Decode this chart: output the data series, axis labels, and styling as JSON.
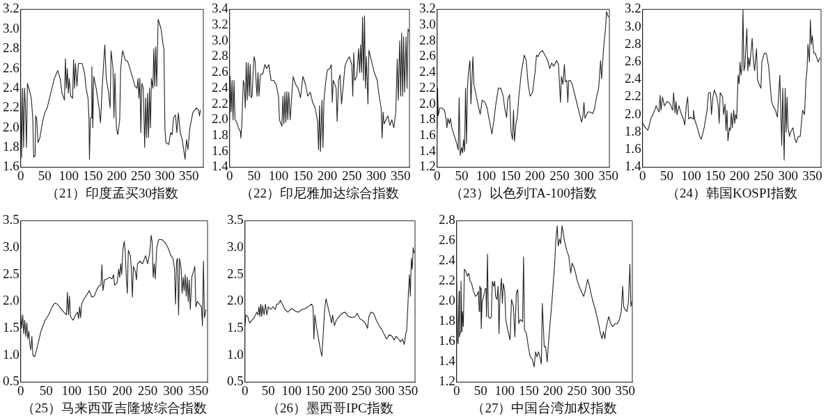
{
  "chart_data": [
    {
      "type": "line",
      "xlabel": "（21）印度孟买30指数",
      "marker": "none",
      "xlim": [
        0,
        380
      ],
      "xticks": [
        0,
        50,
        100,
        150,
        200,
        250,
        300,
        350
      ],
      "ylim": [
        1.6,
        3.2
      ],
      "yticks": [
        1.6,
        1.8,
        {
          "value": 2,
          "label": "2.0"
        },
        2.2,
        2.4,
        2.6,
        2.8,
        {
          "value": 3,
          "label": "3.0"
        },
        3.2
      ],
      "series": [
        {
          "color": "#222222",
          "x": [
            0,
            2,
            4,
            6,
            8,
            10,
            12,
            14,
            18,
            22,
            25,
            27,
            30,
            31,
            33,
            36,
            40,
            45,
            50,
            55,
            60,
            65,
            70,
            77,
            82,
            86,
            91,
            93,
            95,
            97,
            99,
            101,
            104,
            108,
            110,
            112,
            114,
            117,
            120,
            128,
            133,
            136,
            140,
            142,
            143,
            145,
            147,
            148,
            150,
            152,
            157,
            163,
            166,
            170,
            175,
            178,
            183,
            186,
            188,
            192,
            194,
            196,
            199,
            202,
            206,
            208,
            212,
            218,
            222,
            226,
            232,
            238,
            242,
            244,
            246,
            248,
            250,
            252,
            255,
            258,
            260,
            262,
            264,
            266,
            268,
            270,
            272,
            275,
            277,
            279,
            281,
            283,
            286,
            292,
            296,
            298,
            300,
            302,
            308,
            312,
            315,
            318,
            322,
            325,
            328,
            332,
            336,
            340,
            342,
            345,
            348,
            352,
            358,
            365,
            370,
            372,
            374
          ],
          "values": [
            2.4,
            1.7,
            2.4,
            1.8,
            2.4,
            2.2,
            1.8,
            2.45,
            2.38,
            2.3,
            2.1,
            1.7,
            1.72,
            2.12,
            2.1,
            1.85,
            1.9,
            2.05,
            2.15,
            2.2,
            2.3,
            2.4,
            2.5,
            2.58,
            2.5,
            2.35,
            2.28,
            2.7,
            2.4,
            2.6,
            2.35,
            2.5,
            2.32,
            2.3,
            2.69,
            2.4,
            2.65,
            2.42,
            2.65,
            2.65,
            2.55,
            2.4,
            2.3,
            2.1,
            1.68,
            2.1,
            2.1,
            2.62,
            2.0,
            2.52,
            2.4,
            2.2,
            2.05,
            2.45,
            2.84,
            2.5,
            2.35,
            2.2,
            2.78,
            2.6,
            2.1,
            2.55,
            2.0,
            1.93,
            2.08,
            2.6,
            2.78,
            2.68,
            2.68,
            2.62,
            2.52,
            2.42,
            2.4,
            2.5,
            2.3,
            2.5,
            1.95,
            2.45,
            2.4,
            1.8,
            2.3,
            1.9,
            2.35,
            1.9,
            2.4,
            2.0,
            2.5,
            2.4,
            2.8,
            2.42,
            2.82,
            2.42,
            3.1,
            3.0,
            2.85,
            2.8,
            2.0,
            1.85,
            1.83,
            1.95,
            1.93,
            2.1,
            2.13,
            1.95,
            2.15,
            1.95,
            1.88,
            1.75,
            1.68,
            1.88,
            1.78,
            2.0,
            2.15,
            2.2,
            2.18,
            2.12,
            2.18
          ]
        }
      ]
    },
    {
      "type": "line",
      "xlabel": "（22）印尼雅加达综合指数",
      "marker": "none",
      "xlim": [
        0,
        368
      ],
      "xticks": [
        0,
        50,
        100,
        150,
        200,
        250,
        300,
        350
      ],
      "ylim": [
        1.4,
        3.4
      ],
      "yticks": [
        1.4,
        1.6,
        1.8,
        {
          "value": 2,
          "label": "2.0"
        },
        2.2,
        2.4,
        2.6,
        2.8,
        {
          "value": 3,
          "label": "3.0"
        },
        3.2,
        3.4
      ],
      "series": [
        {
          "color": "#222222",
          "x": [
            0,
            1,
            3,
            5,
            7,
            9,
            11,
            14,
            18,
            22,
            23,
            25,
            28,
            30,
            32,
            34,
            36,
            38,
            40,
            42,
            44,
            46,
            48,
            50,
            52,
            54,
            56,
            58,
            60,
            63,
            68,
            72,
            76,
            80,
            85,
            90,
            95,
            100,
            102,
            105,
            107,
            109,
            111,
            113,
            115,
            117,
            119,
            121,
            124,
            127,
            130,
            135,
            140,
            145,
            150,
            155,
            160,
            165,
            170,
            175,
            180,
            182,
            184,
            186,
            189,
            191,
            193,
            197,
            200,
            205,
            208,
            210,
            212,
            218,
            220,
            223,
            226,
            229,
            232,
            236,
            240,
            245,
            250,
            252,
            254,
            256,
            260,
            264,
            266,
            268,
            270,
            272,
            274,
            276,
            278,
            280,
            283,
            285,
            290,
            296,
            302,
            306,
            310,
            312,
            314,
            316,
            320,
            324,
            328,
            332,
            336,
            340,
            343,
            345,
            348,
            350,
            352,
            354,
            356,
            358,
            361,
            363,
            365,
            367
          ],
          "values": [
            2.0,
            2.55,
            2.1,
            2.5,
            2.0,
            2.5,
            2.0,
            1.98,
            1.9,
            1.85,
            1.77,
            1.95,
            2.5,
            2.45,
            2.15,
            2.73,
            2.25,
            2.72,
            2.3,
            2.7,
            2.28,
            2.3,
            2.6,
            2.8,
            2.75,
            2.5,
            2.3,
            2.6,
            2.3,
            2.58,
            2.58,
            2.7,
            2.65,
            2.7,
            2.5,
            2.5,
            2.45,
            2.3,
            2.0,
            1.95,
            1.92,
            2.3,
            1.95,
            2.35,
            1.97,
            2.36,
            2.0,
            2.35,
            2.0,
            2.3,
            2.55,
            2.45,
            2.4,
            2.28,
            2.55,
            2.45,
            2.3,
            2.35,
            2.22,
            2.15,
            1.98,
            1.62,
            2.18,
            1.6,
            2.25,
            1.65,
            2.25,
            2.5,
            2.63,
            2.65,
            2.7,
            2.22,
            2.5,
            2.4,
            1.98,
            2.5,
            2.57,
            2.2,
            2.4,
            2.68,
            2.75,
            2.8,
            2.7,
            2.3,
            2.85,
            2.5,
            2.55,
            2.9,
            2.6,
            2.95,
            2.6,
            3.3,
            2.5,
            3.32,
            2.4,
            2.8,
            2.2,
            2.88,
            2.75,
            2.6,
            2.5,
            2.3,
            2.15,
            1.77,
            2.1,
            1.95,
            2.0,
            2.05,
            1.93,
            2.0,
            1.9,
            2.1,
            2.77,
            2.25,
            3.0,
            2.3,
            3.1,
            2.3,
            3.05,
            2.35,
            3.05,
            2.4,
            3.15,
            3.12
          ]
        }
      ]
    },
    {
      "type": "line",
      "xlabel": "（23）以色列TA-100指数",
      "marker": "none",
      "xlim": [
        0,
        352
      ],
      "xticks": [
        0,
        50,
        100,
        150,
        200,
        250,
        300,
        350
      ],
      "ylim": [
        1.2,
        3.2
      ],
      "yticks": [
        1.2,
        1.4,
        1.6,
        1.8,
        {
          "value": 2,
          "label": "2.0"
        },
        2.2,
        2.4,
        2.6,
        2.8,
        {
          "value": 3,
          "label": "3.0"
        },
        3.2
      ],
      "series": [
        {
          "color": "#222222",
          "x": [
            0,
            1,
            2,
            5,
            10,
            15,
            18,
            20,
            22,
            25,
            27,
            30,
            35,
            40,
            43,
            45,
            47,
            50,
            52,
            54,
            56,
            58,
            60,
            62,
            64,
            67,
            69,
            71,
            73,
            75,
            80,
            85,
            88,
            92,
            98,
            102,
            108,
            112,
            116,
            120,
            125,
            130,
            135,
            138,
            142,
            144,
            148,
            151,
            154,
            156,
            158,
            161,
            164,
            167,
            172,
            178,
            182,
            186,
            190,
            195,
            200,
            203,
            206,
            210,
            215,
            222,
            226,
            230,
            234,
            238,
            244,
            248,
            250,
            252,
            254,
            257,
            260,
            262,
            265,
            267,
            269,
            272,
            276,
            282,
            288,
            292,
            295,
            298,
            300,
            302,
            308,
            312,
            318,
            322,
            326,
            330,
            334,
            336,
            340,
            344,
            346,
            350
          ],
          "values": [
            1.7,
            2.2,
            1.85,
            1.95,
            1.95,
            1.92,
            1.82,
            1.7,
            1.82,
            1.75,
            1.82,
            1.7,
            1.6,
            1.5,
            1.42,
            2.08,
            1.35,
            1.45,
            1.38,
            1.55,
            1.4,
            2.2,
            1.5,
            2.22,
            2.4,
            2.55,
            2.0,
            2.3,
            2.6,
            2.25,
            2.1,
            1.95,
            1.87,
            2.05,
            2.02,
            1.95,
            1.75,
            1.62,
            1.8,
            2.0,
            2.2,
            2.2,
            2.1,
            1.95,
            1.83,
            2.05,
            2.12,
            1.65,
            1.55,
            1.92,
            1.53,
            1.75,
            1.85,
            2.1,
            2.4,
            2.62,
            2.55,
            2.25,
            2.1,
            2.15,
            2.4,
            2.62,
            2.6,
            2.65,
            2.68,
            2.6,
            2.55,
            2.45,
            2.52,
            2.48,
            2.55,
            2.5,
            2.25,
            2.02,
            2.35,
            2.25,
            2.5,
            2.28,
            2.3,
            2.02,
            2.3,
            2.3,
            2.25,
            2.1,
            1.95,
            1.85,
            1.77,
            1.85,
            2.02,
            1.82,
            1.9,
            1.9,
            1.88,
            1.95,
            2.1,
            2.2,
            2.55,
            2.32,
            2.7,
            2.95,
            3.17,
            3.1
          ]
        }
      ]
    },
    {
      "type": "line",
      "xlabel": "（24）韩国KOSPI指数",
      "marker": "none",
      "xlim": [
        0,
        368
      ],
      "xticks": [
        0,
        50,
        100,
        150,
        200,
        250,
        300,
        350
      ],
      "ylim": [
        1.4,
        3.2
      ],
      "yticks": [
        1.4,
        1.6,
        1.8,
        {
          "value": 2,
          "label": "2.0"
        },
        2.2,
        2.4,
        2.6,
        2.8,
        {
          "value": 3,
          "label": "3.0"
        },
        3.2
      ],
      "series": [
        {
          "color": "#222222",
          "x": [
            0,
            6,
            11,
            17,
            25,
            28,
            32,
            34,
            36,
            38,
            41,
            45,
            51,
            57,
            62,
            64,
            67,
            69,
            71,
            75,
            79,
            84,
            87,
            90,
            93,
            95,
            99,
            104,
            105,
            107,
            113,
            118,
            121,
            127,
            133,
            136,
            140,
            142,
            145,
            148,
            153,
            156,
            158,
            160,
            165,
            167,
            170,
            172,
            174,
            176,
            179,
            181,
            183,
            185,
            188,
            190,
            192,
            194,
            197,
            199,
            201,
            203,
            205,
            207,
            209,
            211,
            215,
            217,
            219,
            221,
            226,
            228,
            231,
            235,
            237,
            240,
            244,
            246,
            251,
            255,
            260,
            266,
            269,
            274,
            278,
            283,
            287,
            289,
            292,
            294,
            296,
            298,
            300,
            303,
            305,
            310,
            314,
            317,
            321,
            325,
            330,
            334,
            337,
            339,
            341,
            344,
            346,
            348,
            350,
            353,
            356,
            362,
            366
          ],
          "values": [
            1.9,
            1.85,
            1.82,
            1.95,
            2.05,
            2.1,
            2.05,
            2.03,
            2.22,
            2.05,
            2.2,
            2.1,
            2.15,
            2.12,
            2.05,
            2.25,
            2.02,
            2.15,
            2.0,
            2.1,
            2.02,
            1.95,
            1.88,
            2.1,
            2.2,
            1.95,
            1.97,
            1.95,
            2.05,
            1.95,
            1.85,
            1.75,
            1.72,
            1.85,
            2.05,
            2.25,
            2.25,
            2.0,
            2.2,
            2.28,
            2.2,
            2.1,
            1.9,
            2.25,
            2.2,
            2.0,
            2.12,
            1.82,
            2.05,
            1.7,
            1.85,
            1.82,
            2.02,
            1.85,
            2.05,
            1.9,
            2.0,
            1.95,
            2.45,
            2.35,
            2.6,
            2.45,
            2.55,
            3.2,
            2.5,
            2.55,
            2.98,
            2.5,
            2.65,
            2.55,
            2.87,
            2.65,
            2.5,
            2.75,
            2.4,
            2.35,
            2.3,
            2.6,
            2.7,
            2.7,
            2.55,
            2.15,
            2.1,
            2.05,
            1.97,
            2.45,
            1.65,
            2.3,
            1.48,
            2.3,
            1.8,
            2.2,
            1.85,
            1.75,
            1.8,
            1.85,
            1.72,
            1.68,
            1.75,
            1.75,
            2.05,
            2.0,
            2.4,
            2.5,
            2.8,
            2.6,
            3.08,
            2.8,
            2.9,
            2.7,
            2.7,
            2.6,
            2.65
          ]
        }
      ]
    },
    {
      "type": "line",
      "xlabel": "（25）马来西亚吉隆坡综合指数",
      "marker": "none",
      "xlim": [
        0,
        368
      ],
      "xticks": [
        0,
        50,
        100,
        150,
        200,
        250,
        300,
        350
      ],
      "ylim": [
        0.5,
        3.5
      ],
      "yticks": [
        0.5,
        {
          "value": 1,
          "label": "1.0"
        },
        1.5,
        {
          "value": 2,
          "label": "2.0"
        },
        2.5,
        {
          "value": 3,
          "label": "3.0"
        },
        3.5
      ],
      "series": [
        {
          "color": "#222222",
          "x": [
            0,
            2,
            4,
            6,
            8,
            10,
            12,
            14,
            16,
            18,
            20,
            22,
            24,
            27,
            30,
            35,
            40,
            48,
            55,
            62,
            67,
            72,
            78,
            85,
            90,
            92,
            94,
            96,
            98,
            103,
            108,
            112,
            114,
            116,
            118,
            120,
            125,
            130,
            135,
            140,
            145,
            150,
            155,
            158,
            160,
            162,
            165,
            170,
            175,
            180,
            183,
            185,
            190,
            193,
            195,
            197,
            199,
            201,
            204,
            206,
            208,
            210,
            212,
            216,
            218,
            220,
            222,
            226,
            228,
            230,
            235,
            240,
            246,
            250,
            254,
            257,
            259,
            261,
            263,
            265,
            268,
            272,
            278,
            284,
            290,
            296,
            300,
            303,
            305,
            307,
            309,
            311,
            313,
            316,
            318,
            320,
            322,
            324,
            326,
            328,
            330,
            332,
            334,
            337,
            340,
            343,
            345,
            348,
            352,
            356,
            358,
            360,
            362,
            365
          ],
          "values": [
            1.75,
            1.5,
            1.75,
            1.4,
            1.65,
            1.35,
            1.6,
            1.3,
            1.45,
            1.2,
            1.1,
            1.35,
            1.0,
            0.97,
            1.05,
            1.25,
            1.45,
            1.65,
            1.75,
            1.9,
            1.97,
            1.95,
            1.88,
            1.8,
            1.75,
            2.17,
            1.75,
            2.1,
            1.72,
            1.65,
            1.75,
            1.8,
            1.68,
            1.9,
            1.7,
            1.95,
            2.05,
            2.12,
            2.2,
            2.08,
            2.1,
            2.22,
            2.3,
            2.3,
            2.68,
            2.2,
            2.4,
            2.42,
            2.45,
            2.42,
            2.5,
            2.3,
            2.35,
            2.6,
            2.45,
            2.7,
            2.5,
            2.95,
            3.12,
            2.9,
            2.45,
            2.15,
            2.95,
            2.85,
            2.6,
            2.08,
            2.65,
            2.55,
            2.4,
            2.7,
            2.75,
            2.7,
            2.85,
            2.7,
            2.9,
            3.23,
            3.1,
            2.45,
            2.7,
            2.42,
            3.0,
            3.15,
            3.15,
            3.1,
            3.0,
            2.85,
            2.8,
            2.6,
            1.95,
            2.75,
            2.8,
            1.75,
            2.8,
            2.6,
            2.15,
            2.45,
            2.2,
            2.5,
            2.1,
            2.45,
            2.0,
            2.4,
            1.85,
            2.45,
            2.55,
            2.65,
            1.9,
            2.0,
            1.95,
            1.9,
            1.55,
            2.75,
            1.7,
            1.85
          ]
        }
      ]
    },
    {
      "type": "line",
      "xlabel": "（26）墨西哥IPC指数",
      "marker": "none",
      "xlim": [
        0,
        365
      ],
      "xticks": [
        0,
        50,
        100,
        150,
        200,
        250,
        300,
        350
      ],
      "ylim": [
        0.5,
        3.5
      ],
      "yticks": [
        0.5,
        {
          "value": 1,
          "label": "1.0"
        },
        1.5,
        {
          "value": 2,
          "label": "2.0"
        },
        2.5,
        {
          "value": 3,
          "label": "3.0"
        },
        3.5
      ],
      "series": [
        {
          "color": "#222222",
          "x": [
            0,
            2,
            6,
            10,
            15,
            20,
            25,
            28,
            30,
            32,
            34,
            36,
            38,
            41,
            44,
            47,
            50,
            55,
            60,
            65,
            68,
            72,
            76,
            80,
            86,
            92,
            100,
            108,
            115,
            122,
            130,
            138,
            143,
            146,
            148,
            150,
            154,
            158,
            162,
            165,
            168,
            171,
            174,
            178,
            182,
            186,
            188,
            192,
            196,
            202,
            208,
            215,
            222,
            230,
            237,
            241,
            246,
            252,
            258,
            263,
            266,
            270,
            276,
            282,
            288,
            292,
            298,
            304,
            310,
            316,
            320,
            324,
            328,
            334,
            338,
            342,
            345,
            347,
            349,
            351,
            353,
            355,
            357,
            359,
            361,
            363
          ],
          "values": [
            1.55,
            1.75,
            1.72,
            1.6,
            1.65,
            1.7,
            1.8,
            1.75,
            1.9,
            1.72,
            1.95,
            1.72,
            1.92,
            1.75,
            1.95,
            1.75,
            1.9,
            1.85,
            1.9,
            1.85,
            1.95,
            1.95,
            2.02,
            1.95,
            1.85,
            1.8,
            1.87,
            1.82,
            1.8,
            1.85,
            1.87,
            1.92,
            1.95,
            1.9,
            1.3,
            1.75,
            1.5,
            1.3,
            1.1,
            0.98,
            1.4,
            1.85,
            2.05,
            1.9,
            1.75,
            1.6,
            1.75,
            1.55,
            1.65,
            1.72,
            1.78,
            1.8,
            1.72,
            1.7,
            1.72,
            1.78,
            1.68,
            1.65,
            1.6,
            1.5,
            1.72,
            1.8,
            1.78,
            1.65,
            1.55,
            1.5,
            1.4,
            1.3,
            1.38,
            1.35,
            1.28,
            1.35,
            1.32,
            1.25,
            1.3,
            1.2,
            1.4,
            1.45,
            1.8,
            2.2,
            2.5,
            2.1,
            2.8,
            2.6,
            3.0,
            2.9
          ]
        }
      ]
    },
    {
      "type": "line",
      "xlabel": "（27）中国台湾加权指数",
      "marker": "none",
      "xlim": [
        0,
        365
      ],
      "xticks": [
        0,
        50,
        100,
        150,
        200,
        250,
        300,
        350
      ],
      "ylim": [
        1.2,
        2.8
      ],
      "yticks": [
        1.2,
        1.4,
        1.6,
        1.8,
        {
          "value": 2,
          "label": "2.0"
        },
        2.2,
        2.4,
        2.6,
        2.8
      ],
      "series": [
        {
          "color": "#222222",
          "x": [
            0,
            2,
            3,
            5,
            6,
            8,
            9,
            11,
            12,
            14,
            16,
            19,
            22,
            25,
            28,
            31,
            35,
            39,
            43,
            45,
            47,
            48,
            50,
            51,
            53,
            56,
            59,
            61,
            62,
            64,
            66,
            69,
            72,
            74,
            77,
            79,
            81,
            84,
            86,
            88,
            90,
            93,
            95,
            97,
            100,
            102,
            106,
            111,
            114,
            118,
            121,
            124,
            127,
            129,
            132,
            137,
            139,
            141,
            145,
            149,
            153,
            157,
            161,
            164,
            167,
            170,
            173,
            176,
            178,
            182,
            185,
            188,
            193,
            198,
            204,
            206,
            209,
            211,
            214,
            216,
            219,
            224,
            229,
            233,
            237,
            240,
            245,
            251,
            257,
            264,
            268,
            272,
            276,
            282,
            288,
            294,
            298,
            302,
            305,
            308,
            311,
            316,
            320,
            324,
            329,
            334,
            338,
            342,
            345,
            347,
            350,
            354,
            357,
            360,
            362,
            364
          ],
          "values": [
            2.2,
            1.6,
            1.58,
            2.1,
            1.65,
            1.7,
            2.2,
            1.7,
            1.9,
            1.75,
            2.32,
            2.3,
            2.25,
            2.28,
            2.2,
            2.18,
            2.1,
            2.05,
            2.07,
            2.1,
            1.9,
            2.15,
            2.13,
            1.73,
            2.0,
            2.05,
            2.12,
            2.13,
            1.85,
            2.47,
            1.85,
            1.83,
            1.85,
            2.2,
            2.15,
            2.2,
            2.05,
            2.02,
            2.15,
            1.68,
            2.05,
            2.23,
            1.98,
            2.18,
            2.1,
            1.82,
            1.72,
            1.62,
            2.02,
            1.95,
            1.65,
            2.08,
            2.12,
            1.78,
            1.82,
            1.8,
            2.44,
            1.72,
            1.68,
            1.55,
            1.45,
            1.43,
            1.35,
            1.5,
            1.45,
            1.5,
            1.45,
            1.38,
            1.98,
            1.55,
            1.55,
            1.4,
            1.72,
            2.0,
            2.4,
            2.6,
            2.75,
            2.55,
            2.62,
            2.57,
            2.75,
            2.6,
            2.5,
            2.45,
            2.28,
            2.38,
            2.32,
            2.2,
            2.12,
            2.05,
            2.12,
            2.22,
            2.15,
            2.02,
            1.92,
            1.8,
            1.7,
            1.63,
            1.7,
            1.63,
            1.75,
            1.85,
            1.78,
            1.75,
            1.78,
            1.78,
            1.82,
            1.9,
            2.15,
            1.95,
            1.92,
            1.9,
            2.0,
            2.37,
            1.95,
            2.0
          ]
        }
      ]
    }
  ]
}
